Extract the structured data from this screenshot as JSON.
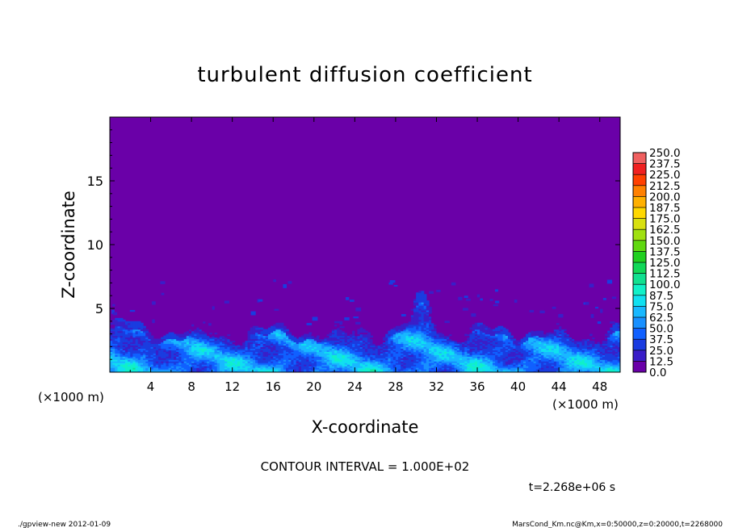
{
  "chart_data": {
    "type": "heatmap",
    "title": "turbulent diffusion coefficient",
    "xlabel": "X-coordinate",
    "ylabel": "Z-coordinate",
    "x_unit_label": "(×1000 m)",
    "y_unit_label": "(×1000 m)",
    "xlim": [
      0,
      50
    ],
    "ylim": [
      0,
      20
    ],
    "x_ticks": [
      4,
      8,
      12,
      16,
      20,
      24,
      28,
      32,
      36,
      40,
      44,
      48
    ],
    "y_ticks": [
      5,
      10,
      15
    ],
    "contour_interval_label": "CONTOUR INTERVAL = 1.000E+02",
    "time_label": "t=2.268e+06 s",
    "colorbar": {
      "levels": [
        0.0,
        12.5,
        25.0,
        37.5,
        50.0,
        62.5,
        75.0,
        87.5,
        100.0,
        112.5,
        125.0,
        137.5,
        150.0,
        162.5,
        175.0,
        187.5,
        200.0,
        212.5,
        225.0,
        237.5,
        250.0
      ],
      "labels": [
        "0.0",
        "12.5",
        "25.0",
        "37.5",
        "50.0",
        "62.5",
        "75.0",
        "87.5",
        "100.0",
        "112.5",
        "125.0",
        "137.5",
        "150.0",
        "162.5",
        "175.0",
        "187.5",
        "200.0",
        "212.5",
        "225.0",
        "237.5",
        "250.0"
      ],
      "colors": [
        "#6a00a8",
        "#3a1ec8",
        "#1a3ce0",
        "#1060ff",
        "#1890ff",
        "#18b8ff",
        "#10e0f0",
        "#10f0c8",
        "#10e090",
        "#10d858",
        "#20d020",
        "#60d810",
        "#a0e010",
        "#d8e010",
        "#ffd800",
        "#ffb000",
        "#ff8000",
        "#ff4000",
        "#f02020",
        "#f06060"
      ]
    },
    "background_color": "#6a00a8",
    "turbulent_layer_top_km": 3.5,
    "field_description_values": {
      "upper_region_value": 0.0,
      "boundary_layer_typical_range": [
        12.5,
        87.5
      ]
    }
  },
  "footer": {
    "left": "./gpview-new   2012-01-09",
    "right": "MarsCond_Km.nc@Km,x=0:50000,z=0:20000,t=2268000"
  }
}
